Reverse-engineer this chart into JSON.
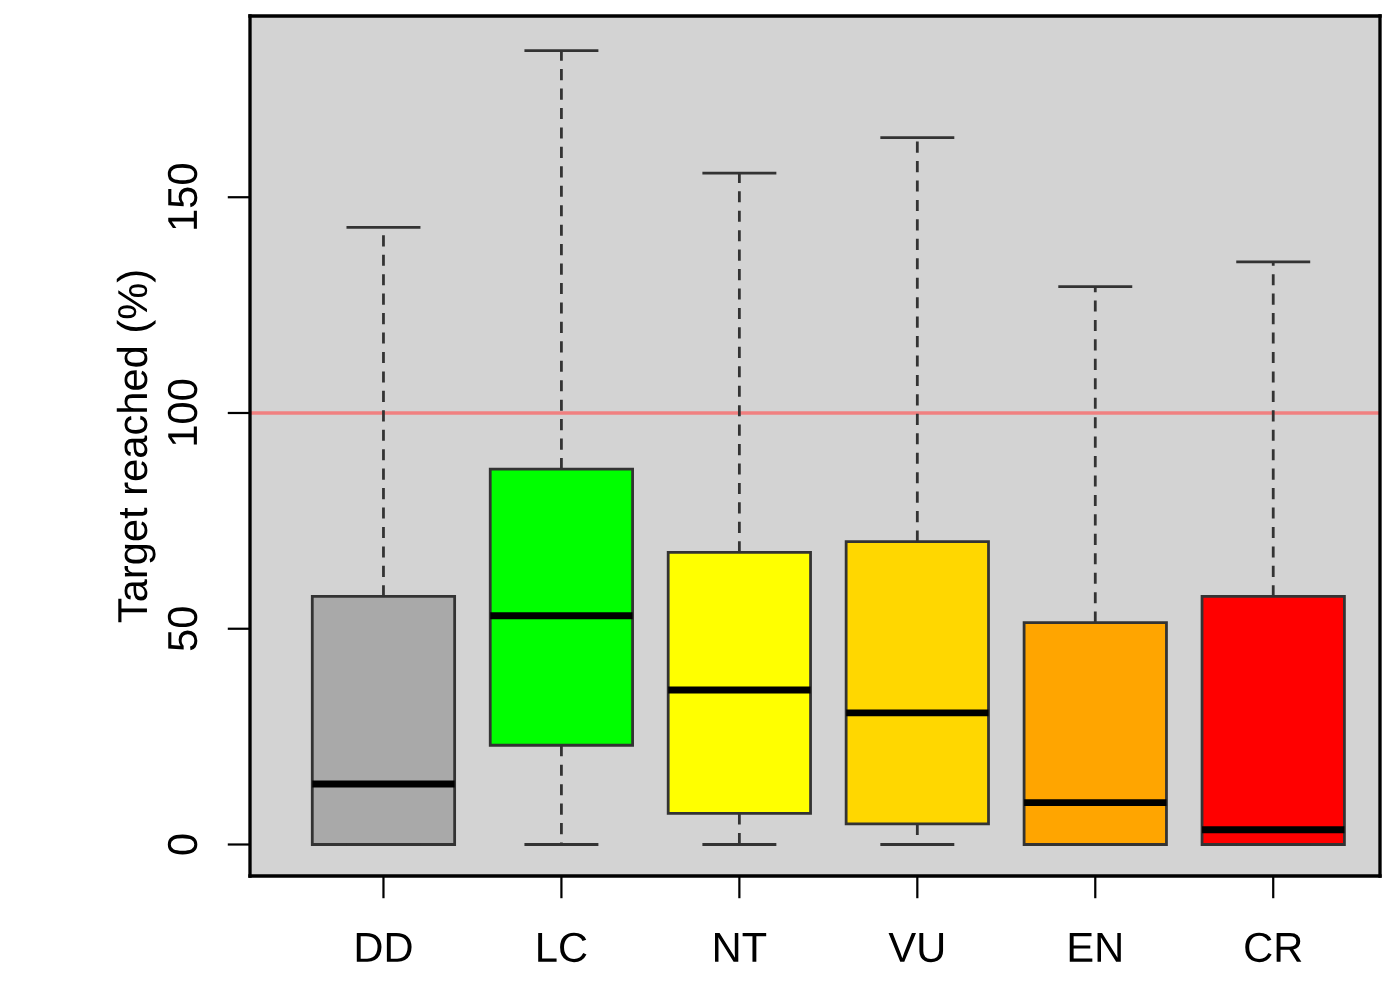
{
  "chart_data": {
    "type": "box",
    "ylabel": "Target reached (%)",
    "categories": [
      "DD",
      "LC",
      "NT",
      "VU",
      "EN",
      "CR"
    ],
    "colors": [
      "#a9a9a9",
      "#00ff00",
      "#ffff00",
      "#ffd700",
      "#ffa500",
      "#ff0000"
    ],
    "boxes": [
      {
        "low": 0,
        "q1": 0,
        "median": 14,
        "q3": 57.5,
        "high": 143
      },
      {
        "low": 0,
        "q1": 23,
        "median": 53,
        "q3": 87,
        "high": 184
      },
      {
        "low": 0,
        "q1": 7.2,
        "median": 35.8,
        "q3": 67.7,
        "high": 155.6
      },
      {
        "low": 0,
        "q1": 4.8,
        "median": 30.5,
        "q3": 70.2,
        "high": 163.8
      },
      {
        "low": 0,
        "q1": 0,
        "median": 9.7,
        "q3": 51.4,
        "high": 129.3
      },
      {
        "low": 0,
        "q1": 0,
        "median": 3.4,
        "q3": 57.5,
        "high": 135
      }
    ],
    "ylim": [
      -7.3,
      192
    ],
    "yticks": [
      0,
      50,
      100,
      150
    ],
    "ref_lines": [
      {
        "axis": "y",
        "value": 100,
        "color": "#f08080"
      }
    ],
    "grid": false
  }
}
